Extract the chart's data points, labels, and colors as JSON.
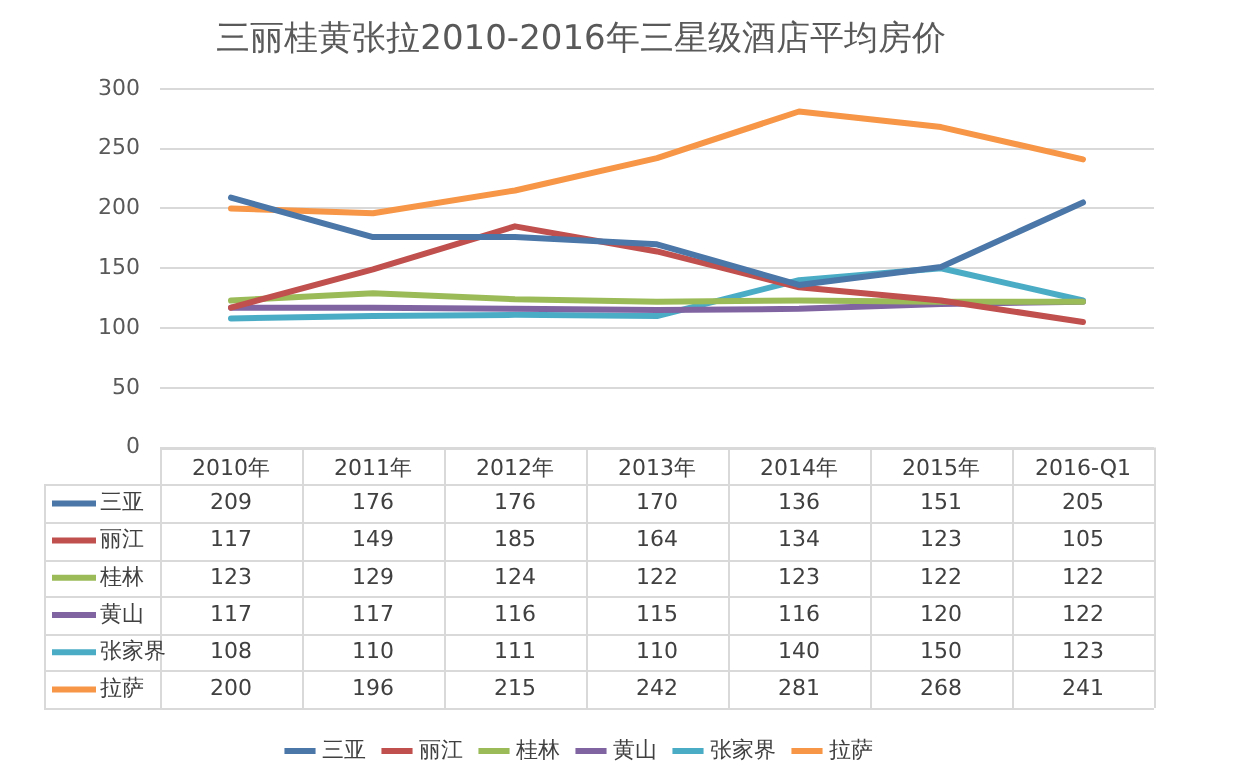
{
  "chart_data": {
    "type": "line",
    "title": "三丽桂黄张拉2010-2016年三星级酒店平均房价",
    "categories": [
      "2010年",
      "2011年",
      "2012年",
      "2013年",
      "2014年",
      "2015年",
      "2016-Q1"
    ],
    "series": [
      {
        "name": "三亚",
        "color": "#4a76a8",
        "values": [
          209,
          176,
          176,
          170,
          136,
          151,
          205
        ]
      },
      {
        "name": "丽江",
        "color": "#c0504d",
        "values": [
          117,
          149,
          185,
          164,
          134,
          123,
          105
        ]
      },
      {
        "name": "桂林",
        "color": "#9bbb59",
        "values": [
          123,
          129,
          124,
          122,
          123,
          122,
          122
        ]
      },
      {
        "name": "黄山",
        "color": "#8064a2",
        "values": [
          117,
          117,
          116,
          115,
          116,
          120,
          122
        ]
      },
      {
        "name": "张家界",
        "color": "#4bacc6",
        "values": [
          108,
          110,
          111,
          110,
          140,
          150,
          123
        ]
      },
      {
        "name": "拉萨",
        "color": "#f79646",
        "values": [
          200,
          196,
          215,
          242,
          281,
          268,
          241
        ]
      }
    ],
    "ylim": [
      0,
      300
    ],
    "yticks": [
      0,
      50,
      100,
      150,
      200,
      250,
      300
    ],
    "grid": "y",
    "legend": "bottom",
    "marker": "none",
    "line_style": "solid",
    "data_labels": true
  }
}
